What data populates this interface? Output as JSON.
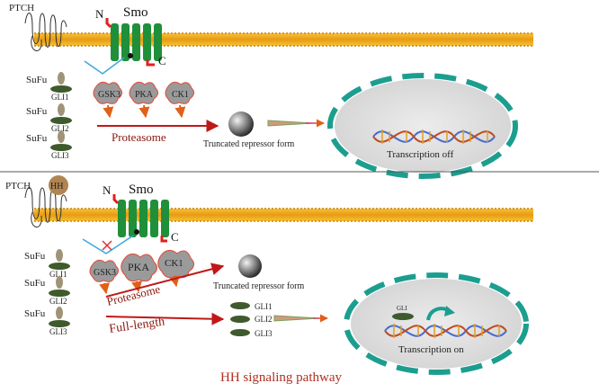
{
  "panels": {
    "top": {
      "receptor_label": "PTCH",
      "smo_label": "Smo",
      "n_terminus_label": "N",
      "c_terminus_label": "C",
      "sufu_labels": [
        "SuFu",
        "SuFu",
        "SuFu"
      ],
      "gli_labels": [
        "GLI1",
        "GLI2",
        "GLI3"
      ],
      "kinase_labels": [
        "GSK3",
        "PKA",
        "CK1"
      ],
      "proteasome_label": "Proteasome",
      "repressor_label": "Truncated repressor form",
      "nucleus_label": "Transcription off"
    },
    "bottom": {
      "receptor_label": "PTCH",
      "ligand_label": "HH",
      "smo_label": "Smo",
      "n_terminus_label": "N",
      "c_terminus_label": "C",
      "sufu_labels": [
        "SuFu",
        "SuFu",
        "SuFu"
      ],
      "gli_labels": [
        "GLI1",
        "GLI2",
        "GLI3"
      ],
      "kinase_labels": [
        "GSK3",
        "PKA",
        "CK1"
      ],
      "proteasome_label": "Proteasome",
      "repressor_label": "Truncated repressor form",
      "full_length_label": "Full-length",
      "full_gli_labels": [
        "GLI1",
        "GLI2",
        "GLI3"
      ],
      "nucleus_gli_label": "GLI",
      "nucleus_label": "Transcription on"
    }
  },
  "caption": "HH signaling pathway",
  "colors": {
    "membrane": "#f2a81d",
    "smo": "#1f8f3a",
    "terminus": "#e02020",
    "sufu": "#a09478",
    "gli": "#3f5a2c",
    "kinase": "#9a9a9a",
    "kinase_border": "#e24a3a",
    "arrow": "#c01818",
    "nucleus": "#dcdcdc",
    "envelope": "#1c9e8f",
    "ligand": "#b08552",
    "caption": "#b03020",
    "inhibit": "#3ca6e0"
  }
}
